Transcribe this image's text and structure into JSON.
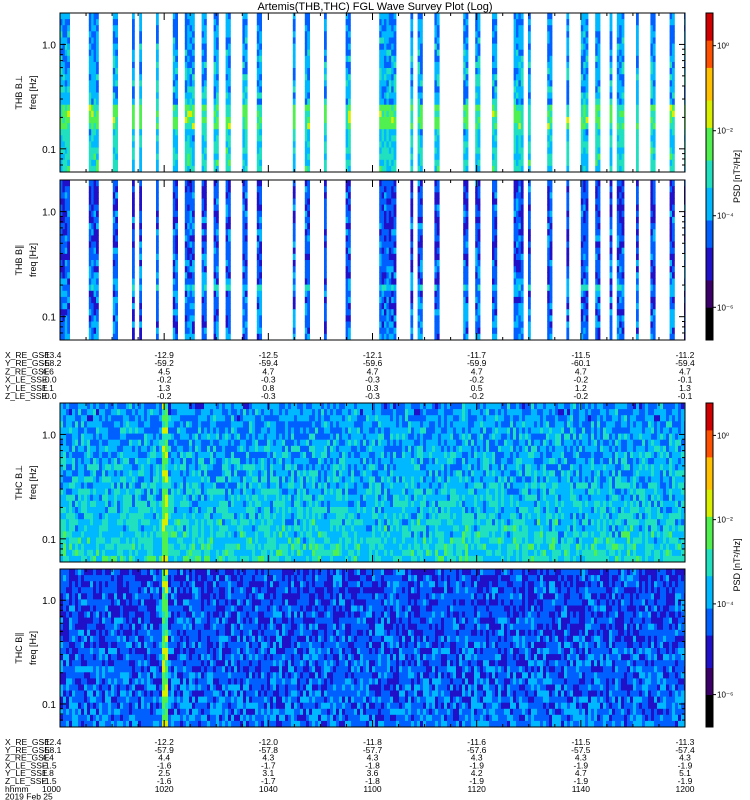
{
  "title": "Artemis(THB,THC) FGL Wave Survey Plot (Log)",
  "panels": [
    {
      "id": "thb_bperp",
      "probe_label": "THB B⊥",
      "freq_label": "freq [Hz]",
      "group": 0,
      "style": "sparse_high",
      "cbar_label": "PSD [nT²/Hz]",
      "cbar_ticks": [
        "10⁰",
        "10⁻²",
        "10⁻⁴",
        "10⁻⁶"
      ]
    },
    {
      "id": "thb_bpar",
      "probe_label": "THB B∥",
      "freq_label": "freq [Hz]",
      "group": 0,
      "style": "sparse_low",
      "cbar_label": "PSD [nT²/Hz]",
      "cbar_ticks": [
        "10⁰",
        "10⁻²",
        "10⁻⁴",
        "10⁻⁶"
      ]
    },
    {
      "id": "thc_bperp",
      "probe_label": "THC B⊥",
      "freq_label": "freq [Hz]",
      "group": 1,
      "style": "dense_high",
      "cbar_label": "PSD [nT²/Hz]",
      "cbar_ticks": [
        "10⁰",
        "10⁻²",
        "10⁻⁴",
        "10⁻⁶"
      ]
    },
    {
      "id": "thc_bpar",
      "probe_label": "THC B∥",
      "freq_label": "freq [Hz]",
      "group": 1,
      "style": "dense_low",
      "cbar_label": "PSD [nT²/Hz]",
      "cbar_ticks": [
        "10⁰",
        "10⁻²",
        "10⁻⁴",
        "10⁻⁶"
      ]
    }
  ],
  "freq_tick_labels": [
    "1.0",
    "0.1"
  ],
  "colorbar_colors": [
    "#000000",
    "#3a0068",
    "#2010c8",
    "#0060ff",
    "#00b8ff",
    "#20e0c0",
    "#50f050",
    "#d8f000",
    "#ffc000",
    "#ff5000",
    "#d00000"
  ],
  "chart_data": [
    {
      "type": "heatmap",
      "title": "Artemis(THB,THC) FGL Wave Survey Plot (Log)",
      "probe": "THB",
      "ylabel": "freq [Hz]",
      "yscale": "log",
      "ylim_hz": [
        0.06,
        2.0
      ],
      "colorbar_label": "PSD [nT²/Hz]",
      "colorbar_scale": "log",
      "colorbar_range": [
        1e-07,
        10
      ],
      "components": [
        "B⊥",
        "B∥"
      ],
      "x_rows": [
        {
          "label": "X_RE_GSE",
          "values": [
            "-13.4",
            "-12.9",
            "-12.5",
            "-12.1",
            "-11.7",
            "-11.5",
            "-11.2"
          ]
        },
        {
          "label": "Y_RE_GSE",
          "values": [
            "-58.2",
            "-59.2",
            "-59.4",
            "-59.6",
            "-59.9",
            "-60.1",
            "-59.4"
          ]
        },
        {
          "label": "Z_RE_GSE",
          "values": [
            "4.6",
            "4.5",
            "4.7",
            "4.7",
            "4.7",
            "4.7",
            "4.7"
          ]
        },
        {
          "label": "X_LE_SSE",
          "values": [
            "-0.0",
            "-0.2",
            "-0.3",
            "-0.3",
            "-0.2",
            "-0.2",
            "-0.1"
          ]
        },
        {
          "label": "Y_LE_SSE",
          "values": [
            "1.1",
            "1.3",
            "0.8",
            "0.3",
            "0.5",
            "1.2",
            "1.3"
          ]
        },
        {
          "label": "Z_LE_SSE",
          "values": [
            "-0.0",
            "-0.2",
            "-0.3",
            "-0.3",
            "-0.2",
            "-0.2",
            "-0.1"
          ]
        }
      ]
    },
    {
      "type": "heatmap",
      "probe": "THC",
      "ylabel": "freq [Hz]",
      "yscale": "log",
      "ylim_hz": [
        0.06,
        2.0
      ],
      "colorbar_label": "PSD [nT²/Hz]",
      "colorbar_scale": "log",
      "colorbar_range": [
        1e-07,
        10
      ],
      "components": [
        "B⊥",
        "B∥"
      ],
      "x_rows": [
        {
          "label": "X_RE_GSE",
          "values": [
            "-12.4",
            "-12.2",
            "-12.0",
            "-11.8",
            "-11.6",
            "-11.5",
            "-11.3"
          ]
        },
        {
          "label": "Y_RE_GSE",
          "values": [
            "-58.1",
            "-57.9",
            "-57.8",
            "-57.7",
            "-57.6",
            "-57.5",
            "-57.4"
          ]
        },
        {
          "label": "Z_RE_GSE",
          "values": [
            "4.4",
            "4.4",
            "4.3",
            "4.3",
            "4.3",
            "4.3",
            "4.3"
          ]
        },
        {
          "label": "X_LE_SSE",
          "values": [
            "-1.5",
            "-1.6",
            "-1.7",
            "-1.8",
            "-1.9",
            "-1.9",
            "-1.9"
          ]
        },
        {
          "label": "Y_LE_SSE",
          "values": [
            "1.8",
            "2.5",
            "3.1",
            "3.6",
            "4.2",
            "4.7",
            "5.1"
          ]
        },
        {
          "label": "Z_LE_SSE",
          "values": [
            "-1.5",
            "-1.6",
            "-1.7",
            "-1.8",
            "-1.9",
            "-1.9",
            "-1.9"
          ]
        },
        {
          "label": "hhmm",
          "values": [
            "1000",
            "1020",
            "1040",
            "1100",
            "1120",
            "1140",
            "1200"
          ]
        }
      ],
      "date_label": "2019 Feb 25"
    }
  ]
}
